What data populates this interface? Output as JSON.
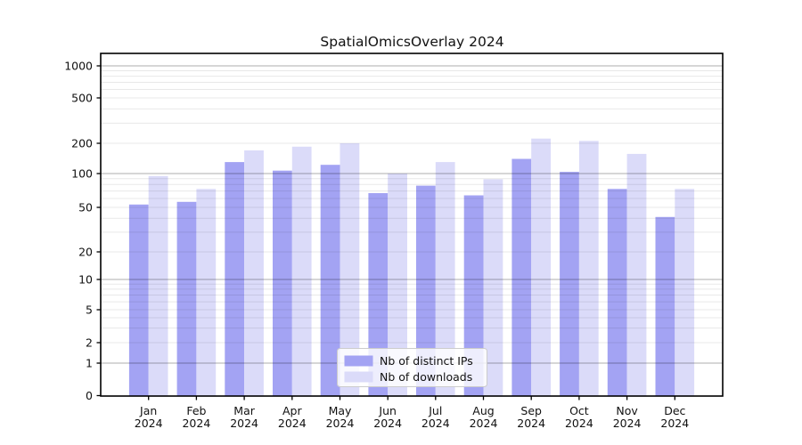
{
  "title": "SpatialOmicsOverlay 2024",
  "chart_data": {
    "type": "bar",
    "title": "SpatialOmicsOverlay 2024",
    "categories": [
      "Jan 2024",
      "Feb 2024",
      "Mar 2024",
      "Apr 2024",
      "May 2024",
      "Jun 2024",
      "Jul 2024",
      "Aug 2024",
      "Sep 2024",
      "Oct 2024",
      "Nov 2024",
      "Dec 2024"
    ],
    "series": [
      {
        "name": "Nb of distinct IPs",
        "color": "#a3a3f3",
        "values": [
          53,
          56,
          130,
          107,
          122,
          67,
          78,
          64,
          140,
          104,
          73,
          41
        ]
      },
      {
        "name": "Nb of downloads",
        "color": "#dbdbf9",
        "values": [
          95,
          73,
          170,
          185,
          200,
          100,
          130,
          89,
          220,
          210,
          157,
          73
        ]
      }
    ],
    "xlabel": "",
    "ylabel": "",
    "yscale": "log-with-zero",
    "yticks": [
      0,
      1,
      2,
      5,
      10,
      20,
      50,
      100,
      200,
      500,
      1000
    ],
    "ylim": [
      0,
      1300
    ],
    "grid": true,
    "legend_position": "inside-bottom-center"
  },
  "colors": {
    "major_grid": "rgba(0,0,0,0.32)",
    "minor_grid": "rgba(0,0,0,0.09)",
    "spine": "#000000",
    "legend_border": "#cccccc",
    "legend_bg": "rgba(255,255,255,0.82)"
  }
}
